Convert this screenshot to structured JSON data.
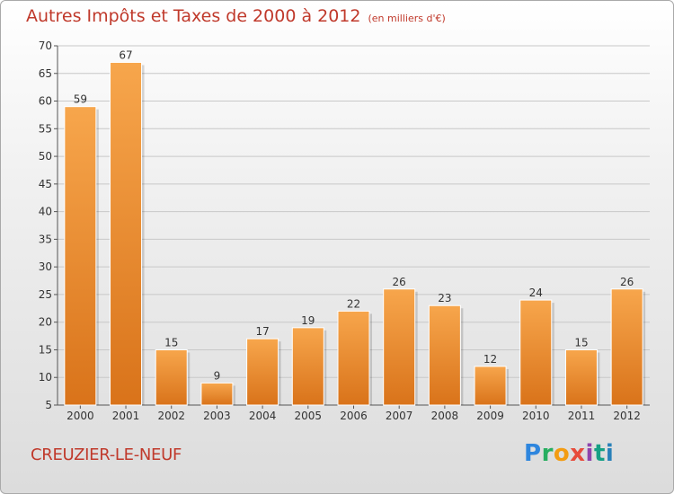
{
  "chart_data": {
    "type": "bar",
    "title": "Autres Impôts et Taxes de 2000 à 2012",
    "subtitle": "(en milliers d'€)",
    "categories": [
      "2000",
      "2001",
      "2002",
      "2003",
      "2004",
      "2005",
      "2006",
      "2007",
      "2008",
      "2009",
      "2010",
      "2011",
      "2012"
    ],
    "values": [
      59,
      67,
      15,
      9,
      17,
      19,
      22,
      26,
      23,
      12,
      24,
      15,
      26
    ],
    "ylim": [
      5,
      70
    ],
    "yticks": [
      5,
      10,
      15,
      20,
      25,
      30,
      35,
      40,
      45,
      50,
      55,
      60,
      65,
      70
    ],
    "grid": true,
    "bar_color": "#e8852a"
  },
  "footer": {
    "commune": "CREUZIER-LE-NEUF",
    "logo": {
      "p": "P",
      "r": "r",
      "o": "o",
      "x": "x",
      "i1": "i",
      "t": "t",
      "i2": "i"
    }
  }
}
